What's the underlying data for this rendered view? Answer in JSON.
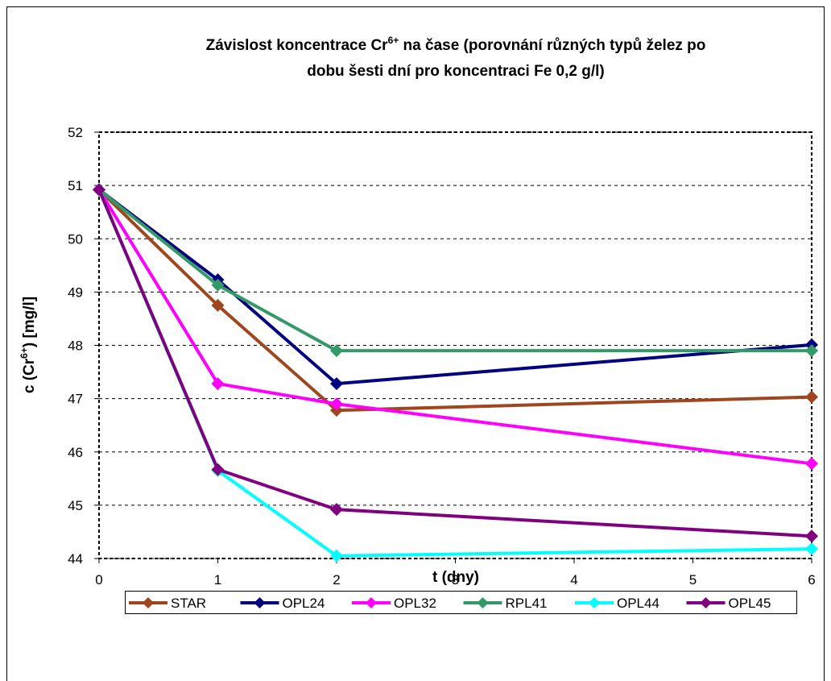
{
  "chart_data": {
    "type": "line",
    "title": [
      "Závislost koncentrace Cr",
      "6+",
      " na čase (porovnání různých typů želez po",
      "dobu šesti dní pro koncentraci Fe 0,2 g/l)"
    ],
    "x_label": "t (dny)",
    "y_label": [
      "c (Cr",
      "6+",
      ") [mg/l]"
    ],
    "x": [
      0,
      1,
      2,
      6
    ],
    "xlim": [
      0,
      6
    ],
    "xticks": [
      0,
      1,
      2,
      3,
      4,
      5,
      6
    ],
    "ylim": [
      44,
      52
    ],
    "yticks": [
      44,
      45,
      46,
      47,
      48,
      49,
      50,
      51,
      52
    ],
    "grid": true,
    "legend": "bottom",
    "series": [
      {
        "name": "STAR",
        "color": "#a0461e",
        "values": [
          50.92,
          48.75,
          46.78,
          47.03
        ]
      },
      {
        "name": "OPL24",
        "color": "#000080",
        "values": [
          50.92,
          49.23,
          47.28,
          48.01
        ]
      },
      {
        "name": "OPL32",
        "color": "#ff00ff",
        "values": [
          50.92,
          47.28,
          46.9,
          45.78
        ]
      },
      {
        "name": "RPL41",
        "color": "#339966",
        "values": [
          50.92,
          49.13,
          47.9,
          47.9
        ]
      },
      {
        "name": "OPL44",
        "color": "#00ffff",
        "values": [
          50.92,
          45.65,
          44.05,
          44.18
        ]
      },
      {
        "name": "OPL45",
        "color": "#800080",
        "values": [
          50.92,
          45.67,
          44.92,
          44.42
        ]
      }
    ]
  }
}
